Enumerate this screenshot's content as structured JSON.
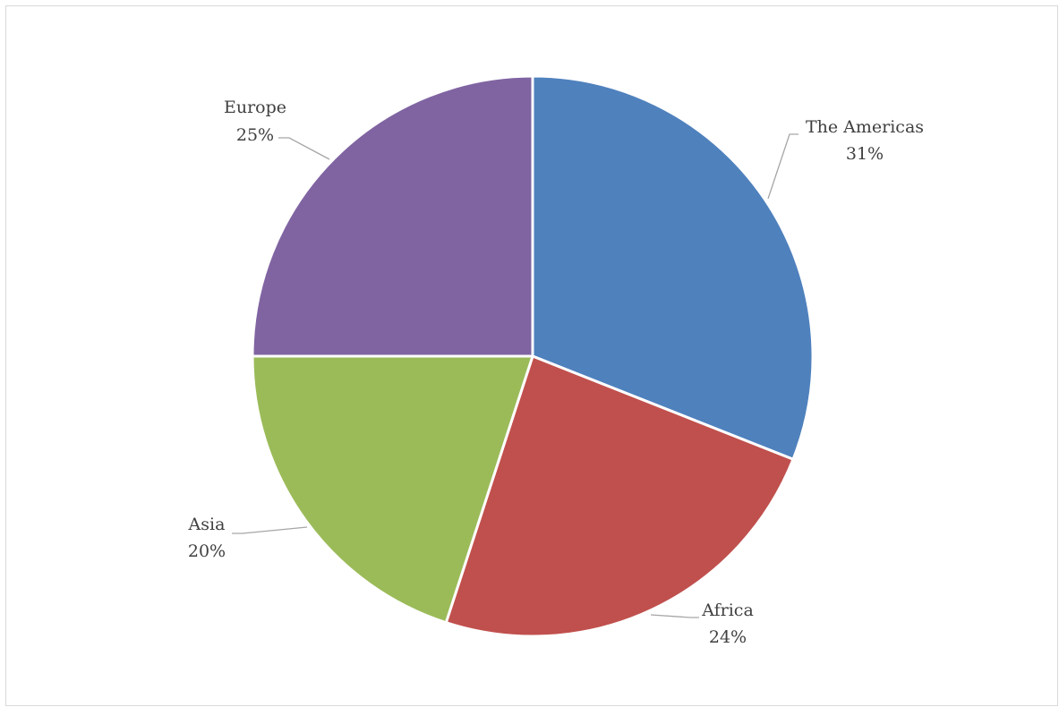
{
  "chart_data": {
    "type": "pie",
    "title": "",
    "slices": [
      {
        "label": "The Americas",
        "value": 31,
        "value_label": "31%",
        "color": "#4F81BD"
      },
      {
        "label": "Africa",
        "value": 24,
        "value_label": "24%",
        "color": "#C0504D"
      },
      {
        "label": "Asia",
        "value": 20,
        "value_label": "20%",
        "color": "#9BBB59"
      },
      {
        "label": "Europe",
        "value": 25,
        "value_label": "25%",
        "color": "#8064A2"
      }
    ],
    "start": "12 o'clock",
    "direction": "clockwise",
    "legend": "none",
    "data_labels": "outside with leader lines"
  }
}
